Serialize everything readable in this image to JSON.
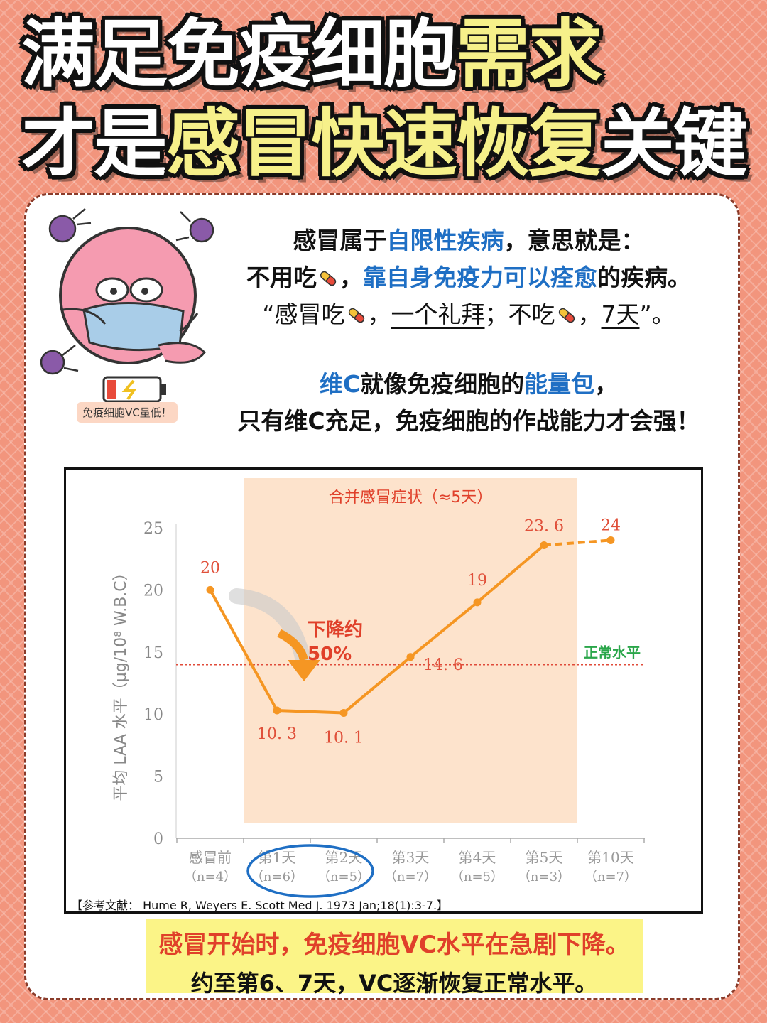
{
  "headline": {
    "line1_white": "满足免疫细胞",
    "line1_yellow": "需求",
    "line2_white_a": "才是",
    "line2_yellow": "感冒快速恢复",
    "line2_white_b": "关键"
  },
  "intro": {
    "p1a": "感冒属于",
    "p1b": "自限性疾病",
    "p1c": "，意思就是：",
    "p2a": "不用吃",
    "p2b": "，",
    "p2c": "靠自身免疫力可以痊愈",
    "p2d": "的疾病。",
    "p3a": "“感冒吃",
    "p3b": "，",
    "p3c": "一个礼拜",
    "p3d": "；不吃",
    "p3e": "，",
    "p3f": "7天",
    "p3g": "”。",
    "p4a": "维C",
    "p4b": "就像免疫细胞的",
    "p4c": "能量包",
    "p4d": "，",
    "p5": "只有维C充足，免疫细胞的作战能力才会强！"
  },
  "mascot": {
    "badge": "免疫细胞VC量低！",
    "icon": "sick-cell-mascot"
  },
  "chart_data": {
    "type": "line",
    "ylabel": "平均 LAA 水平（μg/10⁸ W.B.C）",
    "ylim": [
      0,
      25
    ],
    "yticks": [
      0,
      5,
      10,
      15,
      20,
      25
    ],
    "categories": [
      "感冒前",
      "第1天",
      "第2天",
      "第3天",
      "第4天",
      "第5天",
      "第10天"
    ],
    "sample_sizes": [
      "（n=4）",
      "（n=6）",
      "（n=5）",
      "（n=7）",
      "（n=5）",
      "（n=3）",
      "（n=7）"
    ],
    "values": [
      20,
      10.3,
      10.1,
      14.6,
      19,
      23.6,
      24
    ],
    "value_labels": [
      "20",
      "10. 3",
      "10. 1",
      "14. 6",
      "19",
      "23. 6",
      "24"
    ],
    "last_segment_dashed": true,
    "reference_line": {
      "value": 14,
      "label": "正常水平",
      "color": "#e04b3a"
    },
    "highlight_band": {
      "from_category": 1,
      "to_category": 5,
      "label": "合并感冒症状（≈5天）",
      "color": "#fde3cc"
    },
    "annotation": {
      "line1": "下降约",
      "line2": "50%"
    },
    "circled_categories": [
      1,
      2
    ],
    "line_color": "#f59623",
    "label_color": "#e0503a"
  },
  "reference": "【参考文献：  Hume R, Weyers E. Scott Med J. 1973 Jan;18(1):3-7.】",
  "conclusion": {
    "line1": "感冒开始时，免疫细胞VC水平在急剧下降。",
    "line2": "约至第6、7天，VC逐渐恢复正常水平。"
  }
}
